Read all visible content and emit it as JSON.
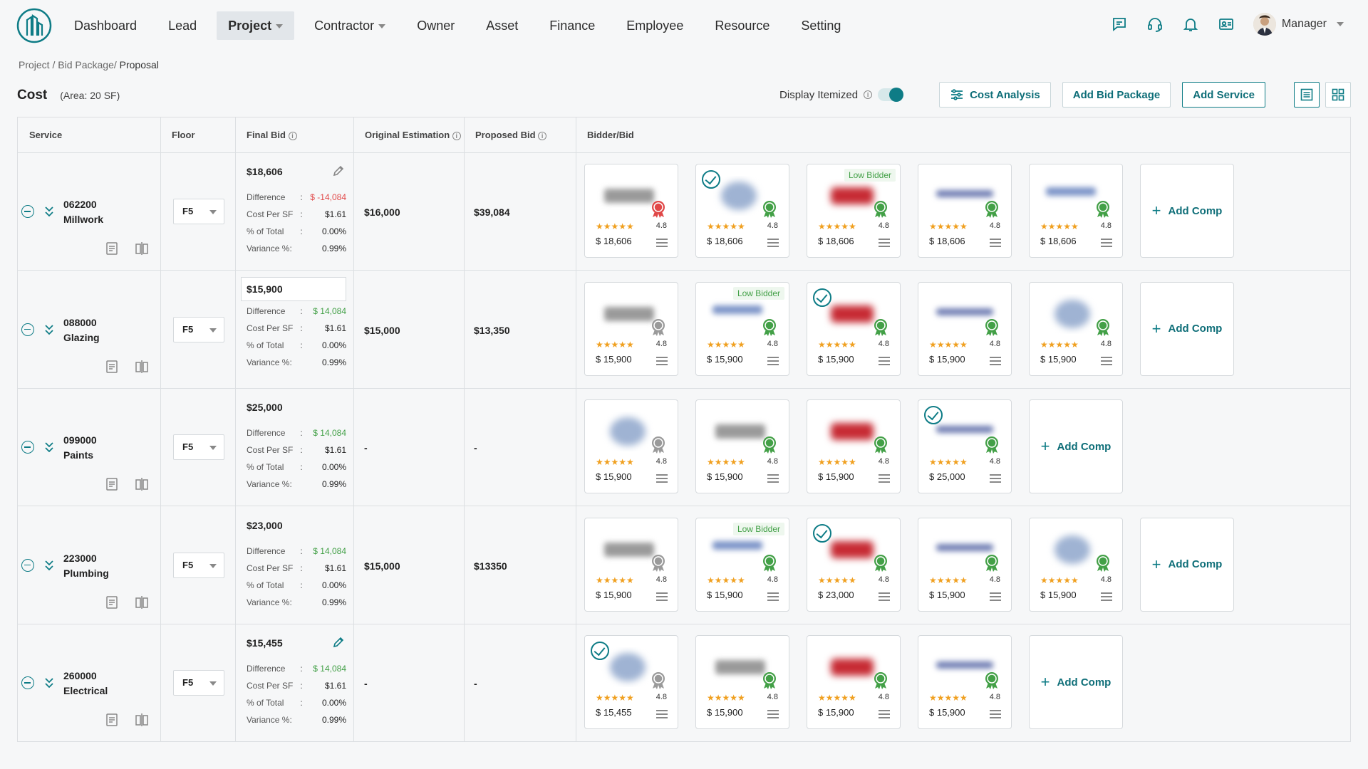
{
  "nav": {
    "items": [
      {
        "label": "Dashboard",
        "active": false,
        "dropdown": false
      },
      {
        "label": "Lead",
        "active": false,
        "dropdown": false
      },
      {
        "label": "Project",
        "active": true,
        "dropdown": true
      },
      {
        "label": "Contractor",
        "active": false,
        "dropdown": true
      },
      {
        "label": "Owner",
        "active": false,
        "dropdown": false
      },
      {
        "label": "Asset",
        "active": false,
        "dropdown": false
      },
      {
        "label": "Finance",
        "active": false,
        "dropdown": false
      },
      {
        "label": "Employee",
        "active": false,
        "dropdown": false
      },
      {
        "label": "Resource",
        "active": false,
        "dropdown": false
      },
      {
        "label": "Setting",
        "active": false,
        "dropdown": false
      }
    ],
    "icons": [
      "chat-icon",
      "headset-icon",
      "bell-icon",
      "contact-card-icon"
    ],
    "user_name": "Manager"
  },
  "breadcrumb": {
    "items": [
      "Project /",
      "Bid Package/"
    ],
    "current": "Proposal"
  },
  "cost": {
    "title": "Cost",
    "area": "(Area: 20 SF)"
  },
  "toolbar": {
    "display_itemized": "Display Itemized",
    "itemized_on": true,
    "cost_analysis": "Cost Analysis",
    "add_bid_package": "Add Bid Package",
    "add_service": "Add Service"
  },
  "columns": {
    "service": "Service",
    "floor": "Floor",
    "final_bid": "Final Bid",
    "original_estimation": "Original Estimation",
    "proposed_bid": "Proposed Bid",
    "bidder_bid": "Bidder/Bid"
  },
  "labels": {
    "difference": "Difference",
    "cost_per_sf": "Cost Per SF",
    "pct_total": "% of Total",
    "variance": "Variance %:",
    "add_comp": "Add Comp",
    "low_bidder": "Low Bidder"
  },
  "colors": {
    "accent": "#0e7c86",
    "negative": "#e24b4b",
    "positive": "#43a047",
    "star": "#f0a020"
  },
  "rows": [
    {
      "code": "062200",
      "name": "Millwork",
      "floor": "F5",
      "final_bid": "$18,606",
      "final_boxed": false,
      "edit": "grey",
      "difference": "$ -14,084",
      "diff_sign": "neg",
      "cost_per_sf": "$1.61",
      "pct_total": "0.00%",
      "variance": "0.99%",
      "original_estimation": "$16,000",
      "proposed_bid": "$39,084",
      "bids": [
        {
          "logo": "A",
          "amount": "$ 18,606",
          "rating": "4.8",
          "medal": "red",
          "selected": false,
          "low": false
        },
        {
          "logo": "B",
          "amount": "$ 18,606",
          "rating": "4.8",
          "medal": "green",
          "selected": true,
          "low": false
        },
        {
          "logo": "C",
          "amount": "$ 18,606",
          "rating": "4.8",
          "medal": "green",
          "selected": false,
          "low": true
        },
        {
          "logo": "D",
          "amount": "$ 18,606",
          "rating": "4.8",
          "medal": "green",
          "selected": false,
          "low": false
        },
        {
          "logo": "E",
          "amount": "$ 18,606",
          "rating": "4.8",
          "medal": "green",
          "selected": false,
          "low": false
        }
      ]
    },
    {
      "code": "088000",
      "name": "Glazing",
      "floor": "F5",
      "final_bid": "$15,900",
      "final_boxed": true,
      "edit": "none",
      "difference": "$ 14,084",
      "diff_sign": "pos",
      "cost_per_sf": "$1.61",
      "pct_total": "0.00%",
      "variance": "0.99%",
      "original_estimation": "$15,000",
      "proposed_bid": "$13,350",
      "bids": [
        {
          "logo": "A",
          "amount": "$ 15,900",
          "rating": "4.8",
          "medal": "grey",
          "selected": false,
          "low": false
        },
        {
          "logo": "E",
          "amount": "$ 15,900",
          "rating": "4.8",
          "medal": "green",
          "selected": false,
          "low": true
        },
        {
          "logo": "C",
          "amount": "$ 15,900",
          "rating": "4.8",
          "medal": "green",
          "selected": true,
          "low": false
        },
        {
          "logo": "D",
          "amount": "$ 15,900",
          "rating": "4.8",
          "medal": "green",
          "selected": false,
          "low": false
        },
        {
          "logo": "B",
          "amount": "$ 15,900",
          "rating": "4.8",
          "medal": "green",
          "selected": false,
          "low": false
        }
      ]
    },
    {
      "code": "099000",
      "name": "Paints",
      "floor": "F5",
      "final_bid": "$25,000",
      "final_boxed": false,
      "edit": "none",
      "difference": "$ 14,084",
      "diff_sign": "pos",
      "cost_per_sf": "$1.61",
      "pct_total": "0.00%",
      "variance": "0.99%",
      "original_estimation": "-",
      "proposed_bid": "-",
      "bids": [
        {
          "logo": "B",
          "amount": "$ 15,900",
          "rating": "4.8",
          "medal": "grey",
          "selected": false,
          "low": false
        },
        {
          "logo": "A",
          "amount": "$ 15,900",
          "rating": "4.8",
          "medal": "green",
          "selected": false,
          "low": false
        },
        {
          "logo": "C",
          "amount": "$ 15,900",
          "rating": "4.8",
          "medal": "green",
          "selected": false,
          "low": false
        },
        {
          "logo": "D",
          "amount": "$ 25,000",
          "rating": "4.8",
          "medal": "green",
          "selected": true,
          "low": false
        }
      ]
    },
    {
      "code": "223000",
      "name": "Plumbing",
      "floor": "F5",
      "final_bid": "$23,000",
      "final_boxed": false,
      "edit": "none",
      "difference": "$ 14,084",
      "diff_sign": "pos",
      "cost_per_sf": "$1.61",
      "pct_total": "0.00%",
      "variance": "0.99%",
      "original_estimation": "$15,000",
      "proposed_bid": "$13350",
      "bids": [
        {
          "logo": "A",
          "amount": "$ 15,900",
          "rating": "4.8",
          "medal": "grey",
          "selected": false,
          "low": false
        },
        {
          "logo": "E",
          "amount": "$ 15,900",
          "rating": "4.8",
          "medal": "green",
          "selected": false,
          "low": true
        },
        {
          "logo": "C",
          "amount": "$ 23,000",
          "rating": "4.8",
          "medal": "green",
          "selected": true,
          "low": false
        },
        {
          "logo": "D",
          "amount": "$ 15,900",
          "rating": "4.8",
          "medal": "green",
          "selected": false,
          "low": false
        },
        {
          "logo": "B",
          "amount": "$ 15,900",
          "rating": "4.8",
          "medal": "green",
          "selected": false,
          "low": false
        }
      ]
    },
    {
      "code": "260000",
      "name": "Electrical",
      "floor": "F5",
      "final_bid": "$15,455",
      "final_boxed": false,
      "edit": "teal",
      "difference": "$ 14,084",
      "diff_sign": "pos",
      "cost_per_sf": "$1.61",
      "pct_total": "0.00%",
      "variance": "0.99%",
      "original_estimation": "-",
      "proposed_bid": "-",
      "bids": [
        {
          "logo": "B",
          "amount": "$ 15,455",
          "rating": "4.8",
          "medal": "grey",
          "selected": true,
          "low": false
        },
        {
          "logo": "A",
          "amount": "$ 15,900",
          "rating": "4.8",
          "medal": "green",
          "selected": false,
          "low": false
        },
        {
          "logo": "C",
          "amount": "$ 15,900",
          "rating": "4.8",
          "medal": "green",
          "selected": false,
          "low": false
        },
        {
          "logo": "D",
          "amount": "$ 15,900",
          "rating": "4.8",
          "medal": "green",
          "selected": false,
          "low": false
        }
      ]
    }
  ]
}
